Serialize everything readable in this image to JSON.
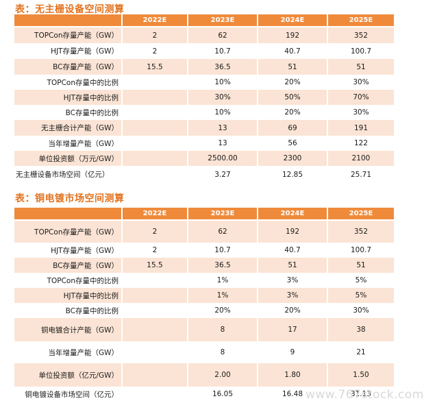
{
  "table1": {
    "title": "表：无主栅设备空间测算",
    "columns": [
      "",
      "2022E",
      "2023E",
      "2024E",
      "2025E"
    ],
    "rows": [
      [
        "TOPCon存量产能（GW）",
        "2",
        "62",
        "192",
        "352"
      ],
      [
        "HJT存量产能（GW）",
        "2",
        "10.7",
        "40.7",
        "100.7"
      ],
      [
        "BC存量产能（GW）",
        "15.5",
        "36.5",
        "51",
        "51"
      ],
      [
        "TOPCon存量中的比例",
        "",
        "10%",
        "20%",
        "30%"
      ],
      [
        "HJT存量中的比例",
        "",
        "30%",
        "50%",
        "70%"
      ],
      [
        "BC存量中的比例",
        "",
        "10%",
        "20%",
        "30%"
      ],
      [
        "无主栅合计产能（GW）",
        "",
        "13",
        "69",
        "191"
      ],
      [
        "当年增量产能（GW）",
        "",
        "13",
        "56",
        "122"
      ],
      [
        "单位投资额（万元/GW）",
        "",
        "2500.00",
        "2300",
        "2100"
      ],
      [
        "无主栅设备市场空间（亿元）",
        "",
        "3.27",
        "12.85",
        "25.71"
      ]
    ]
  },
  "table2": {
    "title": "表：铜电镀市场空间测算",
    "columns": [
      "",
      "2022E",
      "2023E",
      "2024E",
      "2025E"
    ],
    "rows": [
      [
        "TOPCon存量产能（GW）",
        "2",
        "62",
        "192",
        "352"
      ],
      [
        "HJT存量产能（GW）",
        "2",
        "10.7",
        "40.7",
        "100.7"
      ],
      [
        "BC存量产能（GW）",
        "15.5",
        "36.5",
        "51",
        "51"
      ],
      [
        "TOPCon存量中的比例",
        "",
        "1%",
        "3%",
        "5%"
      ],
      [
        "HJT存量中的比例",
        "",
        "1%",
        "3%",
        "5%"
      ],
      [
        "BC存量中的比例",
        "",
        "20%",
        "20%",
        "30%"
      ],
      [
        "铜电镀合计产能（GW）",
        "",
        "8",
        "17",
        "38"
      ],
      [
        "当年增量产能（GW）",
        "",
        "8",
        "9",
        "21"
      ],
      [
        "单位投资额（亿元/GW）",
        "",
        "2.00",
        "1.80",
        "1.50"
      ],
      [
        "铜电镀设备市场空间（亿元）",
        "",
        "16.05",
        "16.48",
        "31.13"
      ]
    ]
  },
  "watermark": "www.767stock.com"
}
